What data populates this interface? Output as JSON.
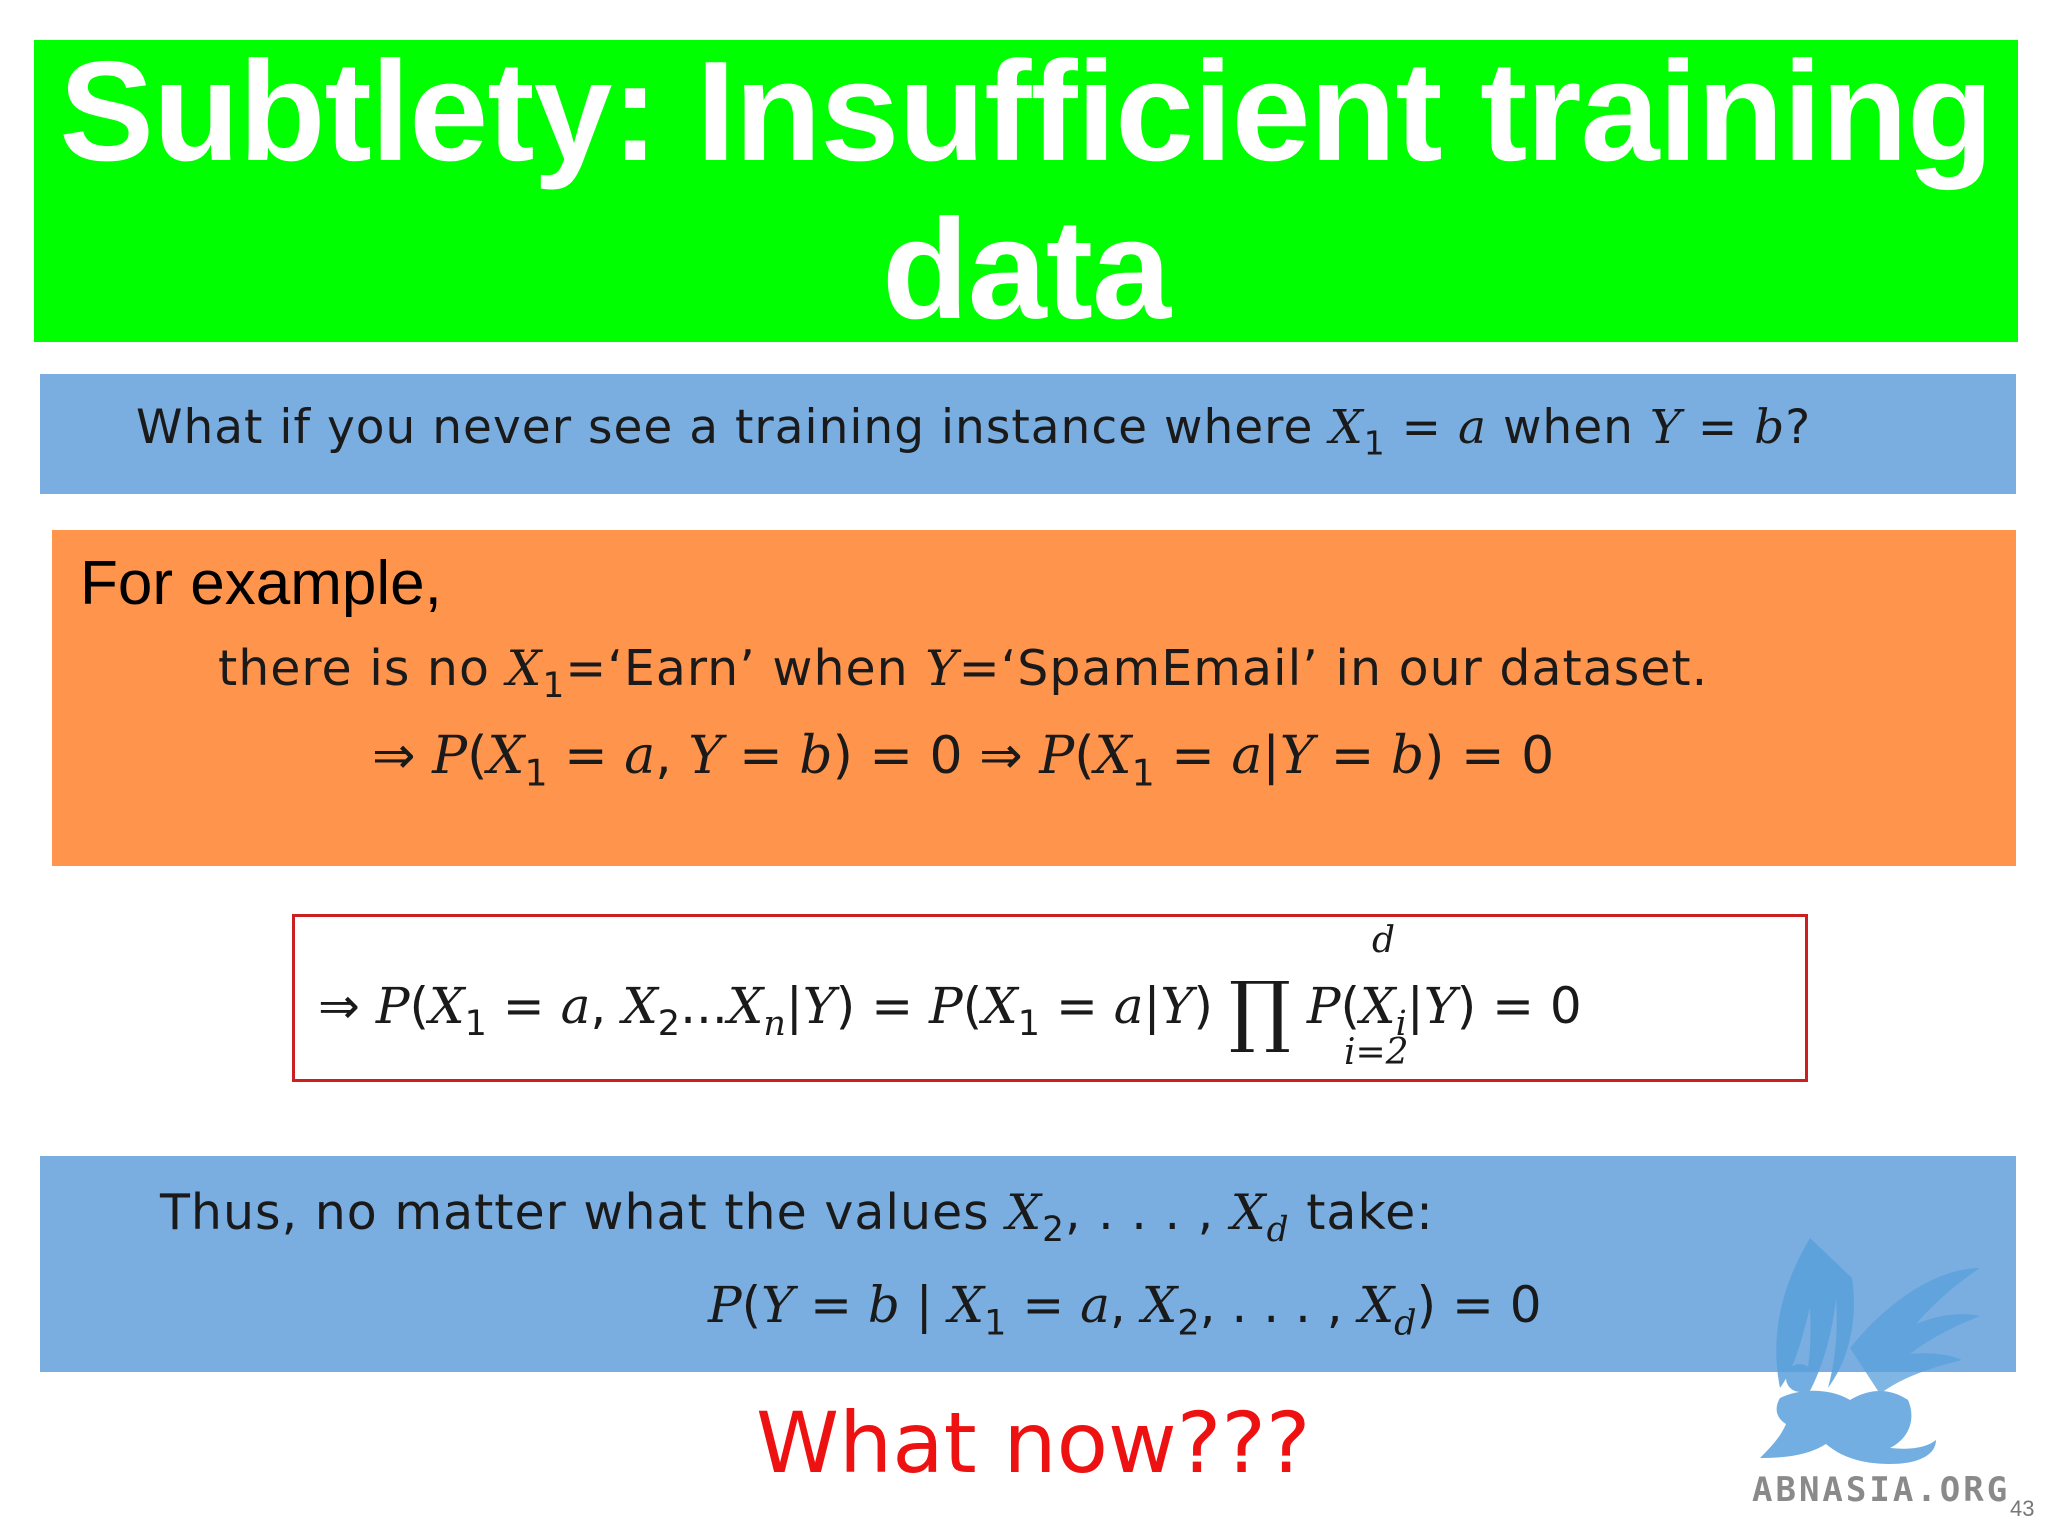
{
  "slide": {
    "title": "Subtlety: Insufficient training data",
    "question": {
      "text_before": "What if you never see a training instance where ",
      "var_x": "X",
      "sub_1": "1",
      "eq": " = ",
      "val_a": "a",
      "text_when": " when ",
      "var_y": "Y",
      "val_b": "b",
      "qmark": "?"
    },
    "example": {
      "heading": "For example,",
      "line1_before": "there is no ",
      "line1_x": "X",
      "line1_sub": "1",
      "line1_mid1": "=‘Earn’ when ",
      "line1_y": "Y",
      "line1_mid2": "=‘SpamEmail’ in our dataset.",
      "implies": "⇒",
      "p": "P",
      "open": "(",
      "close": ")",
      "equals_zero": " = 0",
      "comma": ",",
      "bar": "|"
    },
    "formula": {
      "prod_upper": "d",
      "prod_lower": "i=2",
      "prod_symbol": "∏",
      "dots": "...",
      "sub_2": "2",
      "sub_n": "n",
      "sub_i": "i"
    },
    "conclusion": {
      "line1_before": "Thus, no matter what the values ",
      "list_sep": ", . . . , ",
      "sub_d": "d",
      "line1_after": " take:",
      "bar_spaced": " | "
    },
    "what_now": "What now???",
    "logo_text": "ABNASIA.ORG",
    "page_number": "43"
  },
  "colors": {
    "title_background": "#00ff00",
    "title_text": "#ffffff",
    "blue_band": "#7aaee0",
    "orange_band": "#ff944d",
    "formula_border": "#cc1f1f",
    "what_now_text": "#ee1111",
    "logo_blue": "#5aa0dc"
  }
}
